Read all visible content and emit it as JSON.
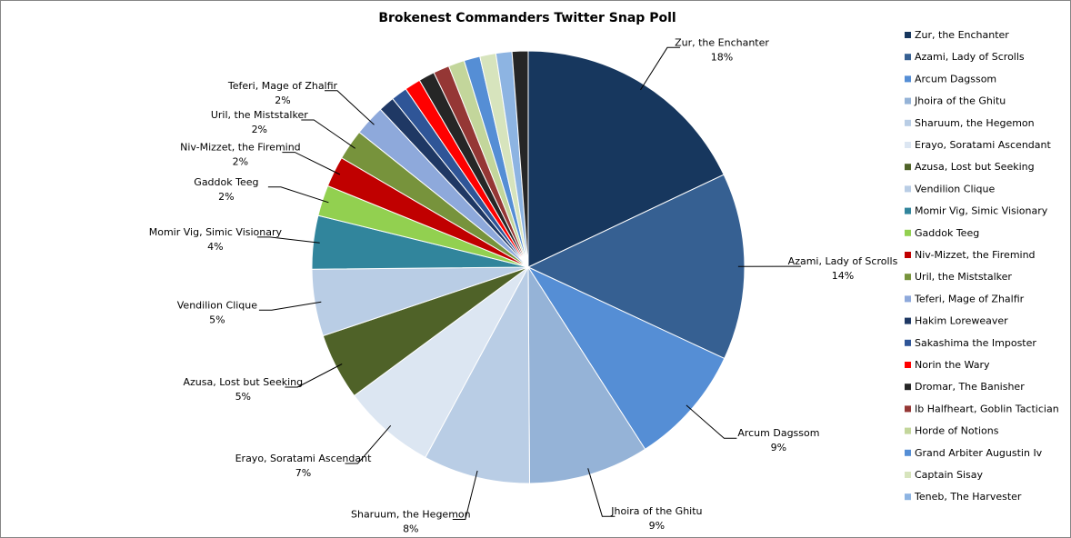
{
  "chart_data": {
    "type": "pie",
    "title": "Brokenest Commanders Twitter Snap Poll",
    "legend_position": "right",
    "slices": [
      {
        "name": "Zur, the Enchanter",
        "value": 18,
        "label": "18%",
        "color": "#17375E"
      },
      {
        "name": "Azami, Lady of Scrolls",
        "value": 14,
        "label": "14%",
        "color": "#366092"
      },
      {
        "name": "Arcum Dagssom",
        "value": 9,
        "label": "9%",
        "color": "#558ED5"
      },
      {
        "name": "Jhoira of the Ghitu",
        "value": 9,
        "label": "9%",
        "color": "#95B3D7"
      },
      {
        "name": "Sharuum, the Hegemon",
        "value": 8,
        "label": "8%",
        "color": "#B9CDE5"
      },
      {
        "name": "Erayo, Soratami  Ascendant",
        "value": 7,
        "label": "7%",
        "color": "#DCE6F2"
      },
      {
        "name": "Azusa, Lost but Seeking",
        "value": 5,
        "label": "5%",
        "color": "#4F6228"
      },
      {
        "name": "Vendilion Clique",
        "value": 5,
        "label": "5%",
        "color": "#B9CDE5"
      },
      {
        "name": "Momir Vig, Simic Visionary",
        "value": 4,
        "label": "4%",
        "color": "#31859C"
      },
      {
        "name": "Gaddok Teeg",
        "value": 2.3,
        "label": "2%",
        "color": "#92D050"
      },
      {
        "name": "Niv-Mizzet, the Firemind",
        "value": 2.3,
        "label": "2%",
        "color": "#C00000"
      },
      {
        "name": "Uril, the Miststalker",
        "value": 2.3,
        "label": "2%",
        "color": "#77933C"
      },
      {
        "name": "Teferi, Mage of Zhalfir",
        "value": 2.3,
        "label": "2%",
        "color": "#8EA9DB"
      },
      {
        "name": "Hakim Loreweaver",
        "value": 1.2,
        "label": "",
        "color": "#1F3864"
      },
      {
        "name": "Sakashima  the Imposter",
        "value": 1.2,
        "label": "",
        "color": "#2F5597"
      },
      {
        "name": "Norin the Wary",
        "value": 1.2,
        "label": "",
        "color": "#FF0000"
      },
      {
        "name": "Dromar, The Banisher",
        "value": 1.2,
        "label": "",
        "color": "#262626"
      },
      {
        "name": "Ib Halfheart,  Goblin Tactician",
        "value": 1.2,
        "label": "",
        "color": "#953735"
      },
      {
        "name": "Horde of Notions",
        "value": 1.2,
        "label": "",
        "color": "#C3D69B"
      },
      {
        "name": "Grand Arbiter Augustin Iv",
        "value": 1.2,
        "label": "",
        "color": "#558ED5"
      },
      {
        "name": "Captain Sisay",
        "value": 1.2,
        "label": "",
        "color": "#D7E4BD"
      },
      {
        "name": "Teneb, The Harvester",
        "value": 1.2,
        "label": "",
        "color": "#8DB4E2"
      },
      {
        "name": "",
        "value": 1.2,
        "label": "",
        "color": "#262626"
      }
    ]
  }
}
